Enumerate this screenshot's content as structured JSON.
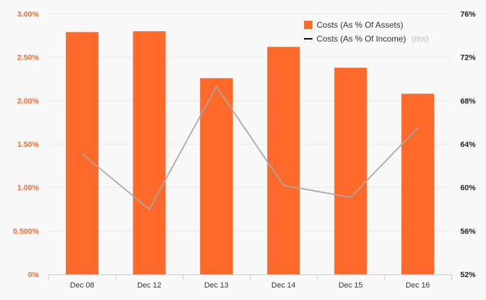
{
  "colors": {
    "bar": "#ff6a2b",
    "line": "#a6a6a6",
    "left_axis_text": "#ff6a2b",
    "grid": "#e6e6e6",
    "axis": "#cccccc",
    "legend_line": "#000000"
  },
  "chart_data": {
    "type": "bar",
    "categories": [
      "Dec 08",
      "Dec 12",
      "Dec 13",
      "Dec 14",
      "Dec 15",
      "Dec 16"
    ],
    "series": [
      {
        "name": "Costs (As % Of Assets)",
        "type": "bar",
        "axis": "left",
        "values": [
          2.79,
          2.8,
          2.26,
          2.62,
          2.38,
          2.08
        ]
      },
      {
        "name": "Costs (As % Of Income)",
        "name_suffix": "(rhs)",
        "type": "line",
        "axis": "right",
        "values": [
          63.1,
          58.0,
          69.3,
          60.2,
          59.1,
          65.5
        ]
      }
    ],
    "y_left": {
      "ylim": [
        0,
        3.0
      ],
      "ticks": [
        0,
        0.5,
        1.0,
        1.5,
        2.0,
        2.5,
        3.0
      ],
      "tick_labels": [
        "0%",
        "0.500%",
        "1.00%",
        "1.50%",
        "2.00%",
        "2.50%",
        "3.00%"
      ]
    },
    "y_right": {
      "ylim": [
        52,
        76
      ],
      "ticks": [
        52,
        56,
        60,
        64,
        68,
        72,
        76
      ],
      "tick_labels": [
        "52%",
        "56%",
        "60%",
        "64%",
        "68%",
        "72%",
        "76%"
      ]
    },
    "grid": true,
    "legend_position": "top-right"
  }
}
